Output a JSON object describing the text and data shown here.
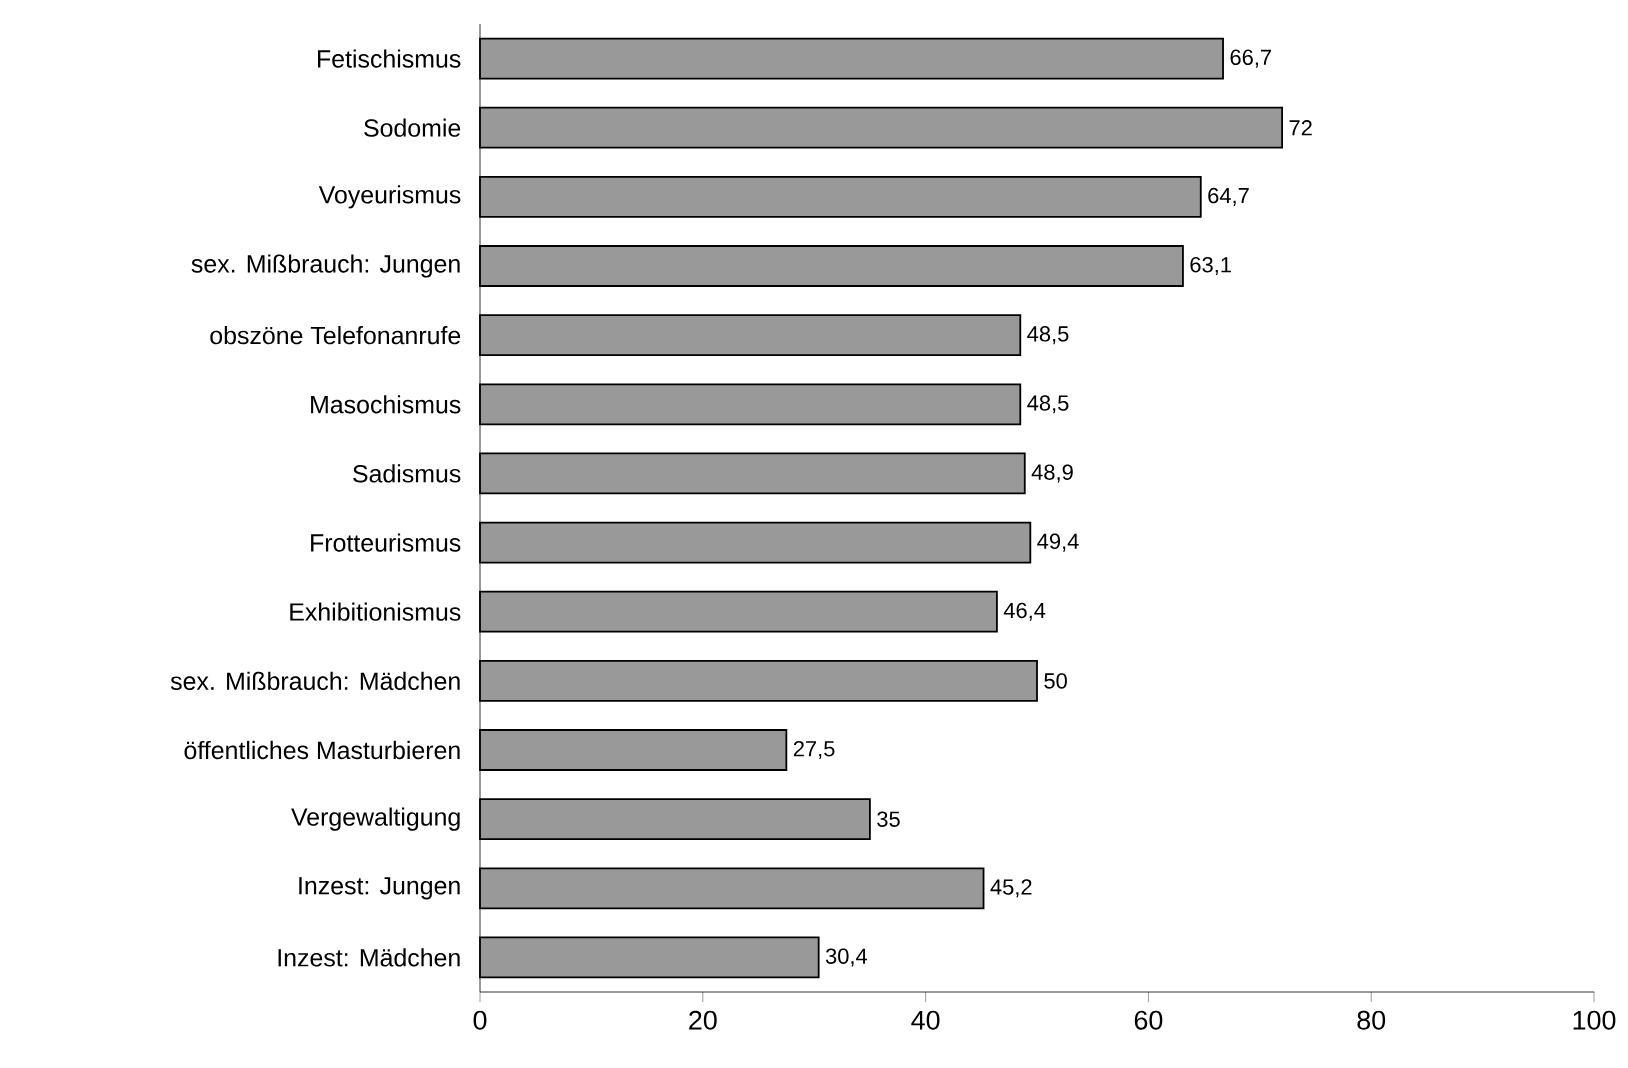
{
  "chart_data": {
    "type": "bar",
    "orientation": "horizontal",
    "categories": [
      "Fetischismus",
      "Sodomie",
      "Voyeurismus",
      "sex. Mißbrauch: Jungen",
      "obszöne Telefonanrufe",
      "Masochismus",
      "Sadismus",
      "Frotteurismus",
      "Exhibitionismus",
      "sex. Mißbrauch: Mädchen",
      "öffentliches Masturbieren",
      "Vergewaltigung",
      "Inzest: Jungen",
      "Inzest: Mädchen"
    ],
    "values": [
      66.7,
      72,
      64.7,
      63.1,
      48.5,
      48.5,
      48.9,
      49.4,
      46.4,
      50,
      27.5,
      35,
      45.2,
      30.4
    ],
    "value_labels": [
      "66,7",
      "72",
      "64,7",
      "63,1",
      "48,5",
      "48,5",
      "48,9",
      "49,4",
      "46,4",
      "50",
      "27,5",
      "35",
      "45,2",
      "30,4"
    ],
    "color": "#999999",
    "xlim": [
      0,
      100
    ],
    "xticks": [
      0,
      20,
      40,
      60,
      80,
      100
    ]
  }
}
